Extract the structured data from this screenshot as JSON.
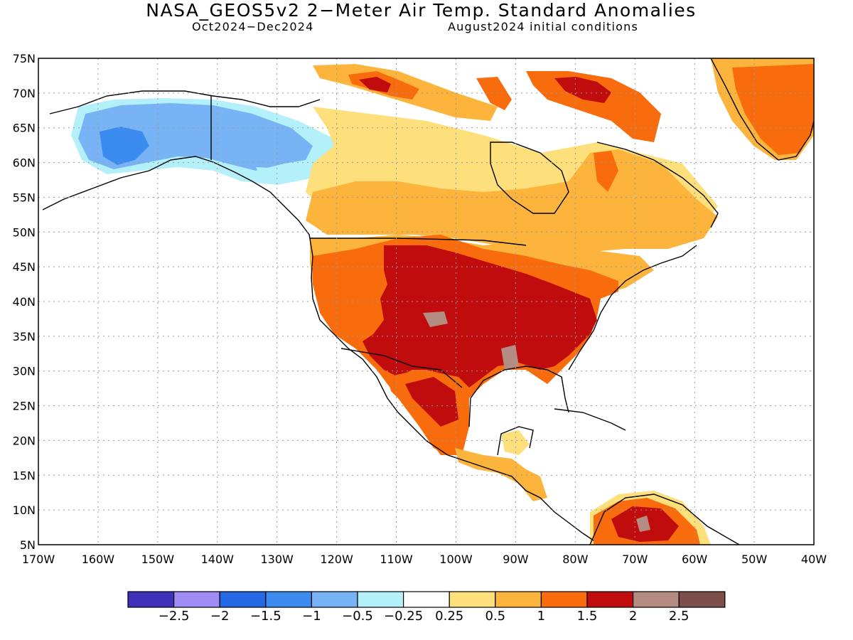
{
  "title": "NASA_GEOS5v2 2−Meter Air Temp. Standard Anomalies",
  "subtitle_left": "Oct2024−Dec2024",
  "subtitle_right": "August2024 initial conditions",
  "lat_labels": [
    "75N",
    "70N",
    "65N",
    "60N",
    "55N",
    "50N",
    "45N",
    "40N",
    "35N",
    "30N",
    "25N",
    "20N",
    "15N",
    "10N",
    "5N"
  ],
  "lat_values": [
    75,
    70,
    65,
    60,
    55,
    50,
    45,
    40,
    35,
    30,
    25,
    20,
    15,
    10,
    5
  ],
  "lon_labels": [
    "170W",
    "160W",
    "150W",
    "140W",
    "130W",
    "120W",
    "110W",
    "100W",
    "90W",
    "80W",
    "70W",
    "60W",
    "50W",
    "40W"
  ],
  "lon_values": [
    -170,
    -160,
    -150,
    -140,
    -130,
    -120,
    -110,
    -100,
    -90,
    -80,
    -70,
    -60,
    -50,
    -40
  ],
  "colorbar": {
    "colors": [
      "#3f30b8",
      "#a08cf5",
      "#2468e6",
      "#3c8cf0",
      "#78b4f5",
      "#b4f0fa",
      "#ffffff",
      "#fde07c",
      "#fdb43c",
      "#f86c0e",
      "#c00c0c",
      "#b48c82",
      "#7c5048"
    ],
    "labels": [
      "−2.5",
      "−2",
      "−1.5",
      "−1",
      "−0.5",
      "−0.25",
      "0.25",
      "0.5",
      "1",
      "1.5",
      "2",
      "2.5"
    ]
  }
}
